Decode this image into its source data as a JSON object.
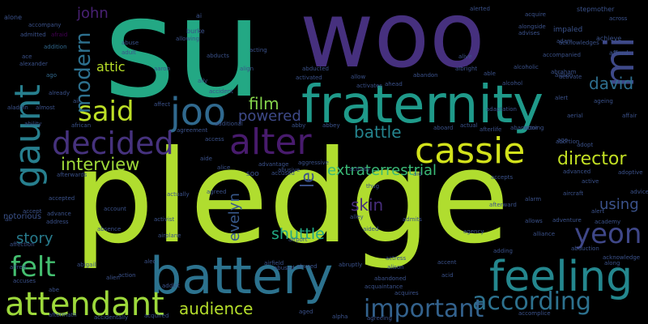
{
  "cloud": {
    "words": [
      {
        "text": "su",
        "color": "#23a884"
      },
      {
        "text": "woo",
        "color": "#46307e"
      },
      {
        "text": "pledge",
        "color": "#b0dd2f"
      },
      {
        "text": "fraternity",
        "color": "#1f9a8a"
      },
      {
        "text": "battery",
        "color": "#2c728e"
      },
      {
        "text": "alter",
        "color": "#481b6d"
      },
      {
        "text": "cassie",
        "color": "#d2e21b"
      },
      {
        "text": "joo",
        "color": "#30698e"
      },
      {
        "text": "feeling",
        "color": "#24878e"
      },
      {
        "text": "said",
        "color": "#bddf26"
      },
      {
        "text": "gaunt",
        "color": "#277f8e"
      },
      {
        "text": "decided",
        "color": "#46327e"
      },
      {
        "text": "mi",
        "color": "#3e4989"
      },
      {
        "text": "attendant",
        "color": "#9dd93b"
      },
      {
        "text": "felt",
        "color": "#44bf70"
      },
      {
        "text": "according",
        "color": "#2d718e"
      },
      {
        "text": "yeon",
        "color": "#3f4788"
      },
      {
        "text": "important",
        "color": "#33628d"
      },
      {
        "text": "modern",
        "color": "#2d708e"
      },
      {
        "text": "interview",
        "color": "#a0da39"
      },
      {
        "text": "director",
        "color": "#c2df23"
      },
      {
        "text": "david",
        "color": "#2e6e8e"
      },
      {
        "text": "film",
        "color": "#84d44b"
      },
      {
        "text": "powered",
        "color": "#3e4a89"
      },
      {
        "text": "audience",
        "color": "#b5de2b"
      },
      {
        "text": "battle",
        "color": "#25848e"
      },
      {
        "text": "extraterrestrial",
        "color": "#3aba76"
      },
      {
        "text": "skin",
        "color": "#472d7b"
      },
      {
        "text": "shuttle",
        "color": "#22a884"
      },
      {
        "text": "story",
        "color": "#287c8e"
      },
      {
        "text": "evelyn",
        "color": "#38598c"
      },
      {
        "text": "using",
        "color": "#3b528b"
      },
      {
        "text": "john",
        "color": "#482173"
      },
      {
        "text": "le",
        "color": "#3b528b"
      },
      {
        "text": "attic",
        "color": "#b8de29"
      },
      {
        "text": "notorious",
        "color": "#3b528b"
      },
      {
        "text": "accompany",
        "color": "#3b528b"
      },
      {
        "text": "admitted",
        "color": "#3b528b"
      },
      {
        "text": "afraid",
        "color": "#440154"
      },
      {
        "text": "addition",
        "color": "#31688e"
      },
      {
        "text": "ace",
        "color": "#3b528b"
      },
      {
        "text": "alexander",
        "color": "#3b528b"
      },
      {
        "text": "ago",
        "color": "#31688e"
      },
      {
        "text": "adam",
        "color": "#3b528b"
      },
      {
        "text": "afford",
        "color": "#3b528b"
      },
      {
        "text": "abraham",
        "color": "#3b528b"
      },
      {
        "text": "alert",
        "color": "#3b528b"
      },
      {
        "text": "achieve",
        "color": "#3b528b"
      },
      {
        "text": "accepted",
        "color": "#3b528b"
      },
      {
        "text": "address",
        "color": "#3b528b"
      },
      {
        "text": "alley",
        "color": "#3b528b"
      },
      {
        "text": "alarm",
        "color": "#3b528b"
      },
      {
        "text": "admits",
        "color": "#3b528b"
      },
      {
        "text": "activist",
        "color": "#3b528b"
      },
      {
        "text": "account",
        "color": "#3b528b"
      },
      {
        "text": "absence",
        "color": "#3b528b"
      },
      {
        "text": "airplane",
        "color": "#3b528b"
      },
      {
        "text": "abigail",
        "color": "#3b528b"
      },
      {
        "text": "acquired",
        "color": "#3b528b"
      },
      {
        "text": "accidentally",
        "color": "#3b528b"
      },
      {
        "text": "aged",
        "color": "#3b528b"
      },
      {
        "text": "alpha",
        "color": "#3b528b"
      },
      {
        "text": "accomplice",
        "color": "#3b528b"
      },
      {
        "text": "actress",
        "color": "#3b528b"
      },
      {
        "text": "alison",
        "color": "#3b528b"
      },
      {
        "text": "abused",
        "color": "#3b528b"
      },
      {
        "text": "abandoned",
        "color": "#3b528b"
      },
      {
        "text": "acquaintance",
        "color": "#3b528b"
      },
      {
        "text": "acquires",
        "color": "#3b528b"
      },
      {
        "text": "agreeing",
        "color": "#3b528b"
      },
      {
        "text": "allowing",
        "color": "#3b528b"
      },
      {
        "text": "alcoholic",
        "color": "#3b528b"
      },
      {
        "text": "adding",
        "color": "#3b528b"
      },
      {
        "text": "acknowledge",
        "color": "#3b528b"
      },
      {
        "text": "along",
        "color": "#3b528b"
      },
      {
        "text": "abortion",
        "color": "#3b528b"
      },
      {
        "text": "advanced",
        "color": "#3b528b"
      },
      {
        "text": "adoptive",
        "color": "#3b528b"
      },
      {
        "text": "active",
        "color": "#3b528b"
      },
      {
        "text": "aircraft",
        "color": "#3b528b"
      },
      {
        "text": "advice",
        "color": "#3b528b"
      },
      {
        "text": "alert",
        "color": "#3b528b"
      },
      {
        "text": "academy",
        "color": "#3b528b"
      },
      {
        "text": "adventure",
        "color": "#3b528b"
      },
      {
        "text": "abduction",
        "color": "#3b528b"
      },
      {
        "text": "alliance",
        "color": "#3b528b"
      },
      {
        "text": "agency",
        "color": "#3b528b"
      },
      {
        "text": "aided",
        "color": "#3b528b"
      },
      {
        "text": "airport",
        "color": "#3b528b"
      },
      {
        "text": "airfield",
        "color": "#3b528b"
      },
      {
        "text": "abruptly",
        "color": "#3b528b"
      },
      {
        "text": "accent",
        "color": "#3b528b"
      },
      {
        "text": "abandon",
        "color": "#3b528b"
      },
      {
        "text": "activates",
        "color": "#3b528b"
      },
      {
        "text": "abused",
        "color": "#3b528b"
      },
      {
        "text": "abby",
        "color": "#3b528b"
      },
      {
        "text": "abbey",
        "color": "#3b528b"
      },
      {
        "text": "aboard",
        "color": "#3b528b"
      },
      {
        "text": "actual",
        "color": "#3b528b"
      },
      {
        "text": "afterlife",
        "color": "#3b528b"
      },
      {
        "text": "actor",
        "color": "#3b528b"
      },
      {
        "text": "abandoning",
        "color": "#3b528b"
      },
      {
        "text": "age",
        "color": "#3b528b"
      },
      {
        "text": "adopt",
        "color": "#3b528b"
      },
      {
        "text": "aggressive",
        "color": "#3b528b"
      },
      {
        "text": "advantage",
        "color": "#3b528b"
      },
      {
        "text": "abusive",
        "color": "#3b528b"
      },
      {
        "text": "activity",
        "color": "#3b528b"
      },
      {
        "text": "accused",
        "color": "#3b528b"
      },
      {
        "text": "alive",
        "color": "#3b528b"
      },
      {
        "text": "able",
        "color": "#3b528b"
      },
      {
        "text": "alcohol",
        "color": "#3b528b"
      },
      {
        "text": "ahead",
        "color": "#3b528b"
      },
      {
        "text": "allow",
        "color": "#3b528b"
      },
      {
        "text": "abducted",
        "color": "#3b528b"
      },
      {
        "text": "activated",
        "color": "#3b528b"
      },
      {
        "text": "acting",
        "color": "#3b528b"
      },
      {
        "text": "abuse",
        "color": "#3b528b"
      },
      {
        "text": "adult",
        "color": "#3b528b"
      },
      {
        "text": "abducts",
        "color": "#3b528b"
      },
      {
        "text": "aaron",
        "color": "#3b528b"
      },
      {
        "text": "ally",
        "color": "#3b528b"
      },
      {
        "text": "align",
        "color": "#3b528b"
      },
      {
        "text": "accident",
        "color": "#3b528b"
      },
      {
        "text": "affect",
        "color": "#3b528b"
      },
      {
        "text": "agreement",
        "color": "#3b528b"
      },
      {
        "text": "additional",
        "color": "#3b528b"
      },
      {
        "text": "almost",
        "color": "#3b528b"
      },
      {
        "text": "african",
        "color": "#3b528b"
      },
      {
        "text": "ability",
        "color": "#3b528b"
      },
      {
        "text": "aladdin",
        "color": "#3b528b"
      },
      {
        "text": "already",
        "color": "#3b528b"
      },
      {
        "text": "afterwards",
        "color": "#3b528b"
      },
      {
        "text": "affection",
        "color": "#3b528b"
      },
      {
        "text": "accuses",
        "color": "#3b528b"
      },
      {
        "text": "alfred",
        "color": "#3b528b"
      },
      {
        "text": "aftermath",
        "color": "#3b528b"
      },
      {
        "text": "addict",
        "color": "#3b528b"
      },
      {
        "text": "action",
        "color": "#3b528b"
      },
      {
        "text": "alien",
        "color": "#3b528b"
      },
      {
        "text": "alec",
        "color": "#3b528b"
      },
      {
        "text": "ali",
        "color": "#3b528b"
      },
      {
        "text": "accept",
        "color": "#3b528b"
      },
      {
        "text": "advance",
        "color": "#3b528b"
      },
      {
        "text": "agreed",
        "color": "#3b528b"
      },
      {
        "text": "actually",
        "color": "#3b528b"
      },
      {
        "text": "access",
        "color": "#3b528b"
      },
      {
        "text": "aide",
        "color": "#3b528b"
      },
      {
        "text": "alice",
        "color": "#3b528b"
      },
      {
        "text": "soo",
        "color": "#3b528b"
      },
      {
        "text": "aid",
        "color": "#3b528b"
      },
      {
        "text": "thug",
        "color": "#3b528b"
      },
      {
        "text": "accepts",
        "color": "#3b528b"
      },
      {
        "text": "afterward",
        "color": "#3b528b"
      },
      {
        "text": "allows",
        "color": "#3b528b"
      },
      {
        "text": "acid",
        "color": "#3b528b"
      },
      {
        "text": "ai",
        "color": "#3b528b"
      },
      {
        "text": "burke",
        "color": "#3b528b"
      },
      {
        "text": "acknowledges",
        "color": "#3b528b"
      },
      {
        "text": "acquire",
        "color": "#3b528b"
      },
      {
        "text": "alongside",
        "color": "#3b528b"
      },
      {
        "text": "alerted",
        "color": "#3b528b"
      },
      {
        "text": "stepmother",
        "color": "#3b528b"
      },
      {
        "text": "impaled",
        "color": "#3b528b"
      },
      {
        "text": "accompanied",
        "color": "#3b528b"
      },
      {
        "text": "across",
        "color": "#3b528b"
      },
      {
        "text": "advises",
        "color": "#3b528b"
      },
      {
        "text": "albright",
        "color": "#3b528b"
      },
      {
        "text": "allison",
        "color": "#3b528b"
      },
      {
        "text": "alone",
        "color": "#3b528b"
      },
      {
        "text": "ageing",
        "color": "#3b528b"
      },
      {
        "text": "affair",
        "color": "#3b528b"
      },
      {
        "text": "adaptation",
        "color": "#3b528b"
      },
      {
        "text": "abe",
        "color": "#3b528b"
      },
      {
        "text": "air",
        "color": "#3b528b"
      },
      {
        "text": "aerial",
        "color": "#3b528b"
      },
      {
        "text": "activate",
        "color": "#3b528b"
      }
    ]
  }
}
